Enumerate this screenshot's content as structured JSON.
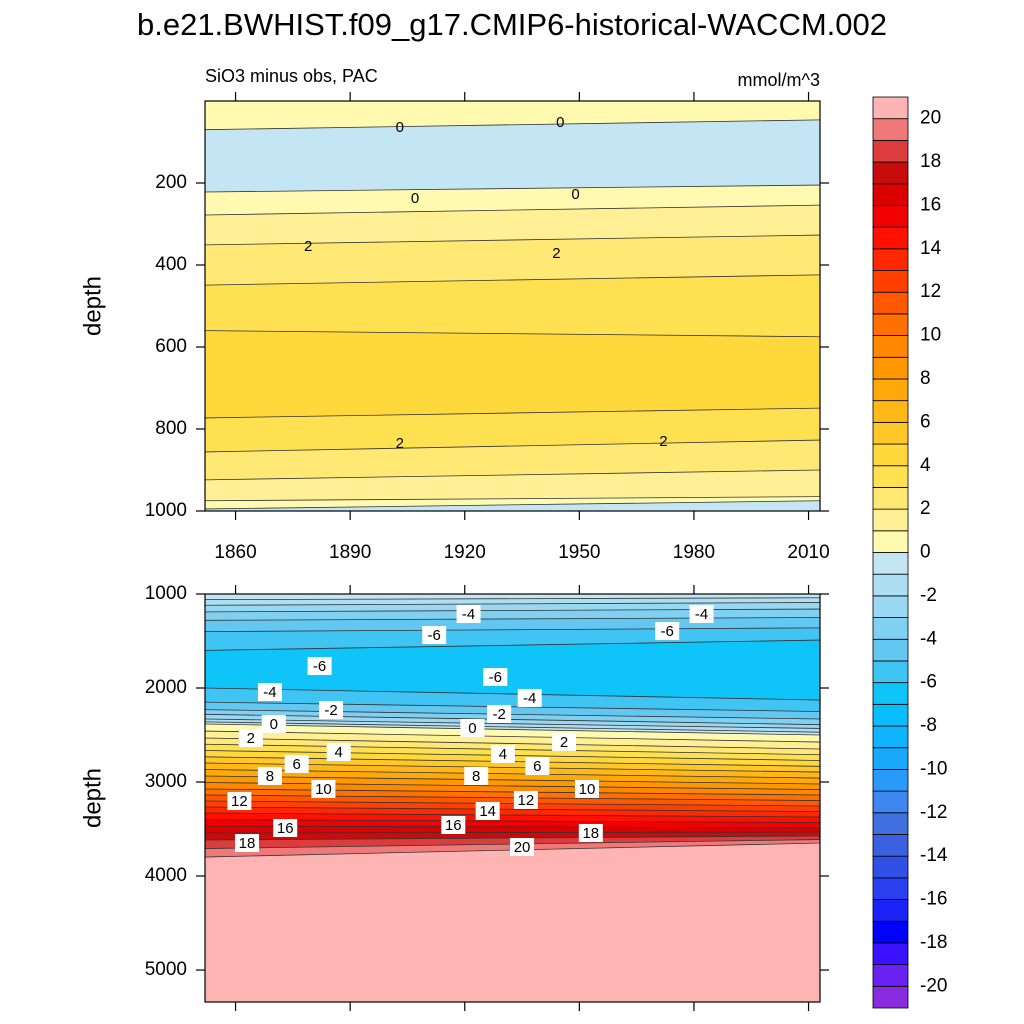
{
  "title": "b.e21.BWHIST.f09_g17.CMIP6-historical-WACCM.002",
  "colorbar": {
    "levels": [
      -20,
      -19,
      -18,
      -17,
      -16,
      -15,
      -14,
      -13,
      -12,
      -11,
      -10,
      -9,
      -8,
      -7,
      -6,
      -5,
      -4,
      -3,
      -2,
      -1,
      0,
      1,
      2,
      3,
      4,
      5,
      6,
      7,
      8,
      9,
      10,
      11,
      12,
      13,
      14,
      15,
      16,
      17,
      18,
      19,
      20
    ],
    "colors": [
      "#8a2be2",
      "#6a22f2",
      "#3a12ff",
      "#0000ff",
      "#1a22f5",
      "#2a40ee",
      "#3050e6",
      "#3a62e0",
      "#4070e0",
      "#3e86f0",
      "#2a9af8",
      "#1aa8fb",
      "#10b4fd",
      "#08befe",
      "#0ec4f9",
      "#40c4f4",
      "#62c8f2",
      "#80d0f2",
      "#98d8f2",
      "#aedef2",
      "#c4e6f4",
      "#fffab0",
      "#fff096",
      "#ffe874",
      "#ffe050",
      "#ffd83c",
      "#ffc828",
      "#ffb818",
      "#ffa80a",
      "#ff9800",
      "#ff8800",
      "#ff7000",
      "#ff5800",
      "#ff4000",
      "#ff2800",
      "#ff1000",
      "#f00000",
      "#dc0000",
      "#c80c0c",
      "#dc3c3c",
      "#f07878",
      "#ffb4b4"
    ],
    "ticks": [
      -20,
      -18,
      -16,
      -14,
      -12,
      -10,
      -8,
      -6,
      -4,
      -2,
      0,
      2,
      4,
      6,
      8,
      10,
      12,
      14,
      16,
      18,
      20
    ]
  },
  "chart_data": [
    {
      "type": "contour",
      "subtitle_left": "SiO3 minus obs, PAC",
      "subtitle_right": "mmol/m^3",
      "ylabel": "depth",
      "xlim": [
        1852,
        2013
      ],
      "ylim": [
        0,
        1000
      ],
      "y_reversed": true,
      "xticks": [
        1860,
        1890,
        1920,
        1950,
        1980,
        2010
      ],
      "show_xtick_labels": true,
      "yticks": [
        200,
        400,
        600,
        800,
        1000
      ],
      "band_levels": [
        0,
        -1,
        0,
        1,
        2,
        3,
        4,
        3,
        2,
        1,
        0,
        -1
      ],
      "boundaries": [
        [
          70,
          46
        ],
        [
          222,
          205
        ],
        [
          278,
          254
        ],
        [
          351,
          327
        ],
        [
          449,
          424
        ],
        [
          560,
          575
        ],
        [
          773,
          749
        ],
        [
          856,
          827
        ],
        [
          924,
          900
        ],
        [
          975,
          965
        ],
        [
          995,
          975
        ]
      ],
      "label_boxes": false,
      "labels": [
        {
          "x": 1903,
          "y": 63,
          "value": 0
        },
        {
          "x": 1945,
          "y": 51,
          "value": 0
        },
        {
          "x": 1907,
          "y": 237,
          "value": 0
        },
        {
          "x": 1949,
          "y": 227,
          "value": 0
        },
        {
          "x": 1879,
          "y": 354,
          "value": 2
        },
        {
          "x": 1944,
          "y": 371,
          "value": 2
        },
        {
          "x": 1903,
          "y": 834,
          "value": 2
        },
        {
          "x": 1972,
          "y": 829,
          "value": 2
        }
      ]
    },
    {
      "type": "contour",
      "ylabel": "depth",
      "xlim": [
        1852,
        2013
      ],
      "ylim": [
        1000,
        5340
      ],
      "y_reversed": true,
      "xticks": [
        1860,
        1890,
        1920,
        1950,
        1980,
        2010
      ],
      "show_xtick_labels": false,
      "yticks": [
        1000,
        2000,
        3000,
        4000,
        5000
      ],
      "band_levels": [
        -1,
        -2,
        -3,
        -4,
        -5,
        -6,
        -7,
        -6,
        -5,
        -4,
        -3,
        -2,
        -1,
        0,
        1,
        2,
        3,
        4,
        5,
        6,
        7,
        8,
        9,
        10,
        11,
        12,
        13,
        14,
        15,
        16,
        17,
        18,
        19,
        20
      ],
      "boundaries": [
        [
          1060,
          1040
        ],
        [
          1120,
          1090
        ],
        [
          1190,
          1160
        ],
        [
          1280,
          1250
        ],
        [
          1400,
          1360
        ],
        [
          1600,
          1490
        ],
        [
          2000,
          2128
        ],
        [
          2150,
          2250
        ],
        [
          2230,
          2330
        ],
        [
          2280,
          2390
        ],
        [
          2330,
          2430
        ],
        [
          2360,
          2470
        ],
        [
          2383,
          2500
        ],
        [
          2458,
          2575
        ],
        [
          2532,
          2649
        ],
        [
          2598,
          2710
        ],
        [
          2665,
          2771
        ],
        [
          2732,
          2833
        ],
        [
          2798,
          2894
        ],
        [
          2867,
          2958
        ],
        [
          2936,
          3021
        ],
        [
          3005,
          3080
        ],
        [
          3074,
          3138
        ],
        [
          3138,
          3197
        ],
        [
          3202,
          3255
        ],
        [
          3266,
          3314
        ],
        [
          3330,
          3372
        ],
        [
          3399,
          3431
        ],
        [
          3468,
          3489
        ],
        [
          3543,
          3532
        ],
        [
          3617,
          3574
        ],
        [
          3708,
          3612
        ],
        [
          3798,
          3649
        ]
      ],
      "label_boxes": true,
      "labels": [
        {
          "x": 1921,
          "y": 1213,
          "value": -4
        },
        {
          "x": 1982,
          "y": 1213,
          "value": -4
        },
        {
          "x": 1912,
          "y": 1436,
          "value": -6
        },
        {
          "x": 1973,
          "y": 1394,
          "value": -6
        },
        {
          "x": 1882,
          "y": 1766,
          "value": -6
        },
        {
          "x": 1928,
          "y": 1883,
          "value": -6
        },
        {
          "x": 1869,
          "y": 2043,
          "value": -4
        },
        {
          "x": 1937,
          "y": 2106,
          "value": -4
        },
        {
          "x": 1885,
          "y": 2234,
          "value": -2
        },
        {
          "x": 1929,
          "y": 2277,
          "value": -2
        },
        {
          "x": 1870,
          "y": 2383,
          "value": 0
        },
        {
          "x": 1922,
          "y": 2426,
          "value": 0
        },
        {
          "x": 1864,
          "y": 2532,
          "value": 2
        },
        {
          "x": 1946,
          "y": 2574,
          "value": 2
        },
        {
          "x": 1887,
          "y": 2681,
          "value": 4
        },
        {
          "x": 1930,
          "y": 2702,
          "value": 4
        },
        {
          "x": 1876,
          "y": 2808,
          "value": 6
        },
        {
          "x": 1939,
          "y": 2830,
          "value": 6
        },
        {
          "x": 1869,
          "y": 2936,
          "value": 8
        },
        {
          "x": 1923,
          "y": 2936,
          "value": 8
        },
        {
          "x": 1883,
          "y": 3074,
          "value": 10
        },
        {
          "x": 1952,
          "y": 3074,
          "value": 10
        },
        {
          "x": 1861,
          "y": 3202,
          "value": 12
        },
        {
          "x": 1936,
          "y": 3191,
          "value": 12
        },
        {
          "x": 1926,
          "y": 3308,
          "value": 14
        },
        {
          "x": 1873,
          "y": 3489,
          "value": 16
        },
        {
          "x": 1917,
          "y": 3457,
          "value": 16
        },
        {
          "x": 1863,
          "y": 3649,
          "value": 18
        },
        {
          "x": 1953,
          "y": 3542,
          "value": 18
        },
        {
          "x": 1935,
          "y": 3691,
          "value": 20
        }
      ]
    }
  ]
}
